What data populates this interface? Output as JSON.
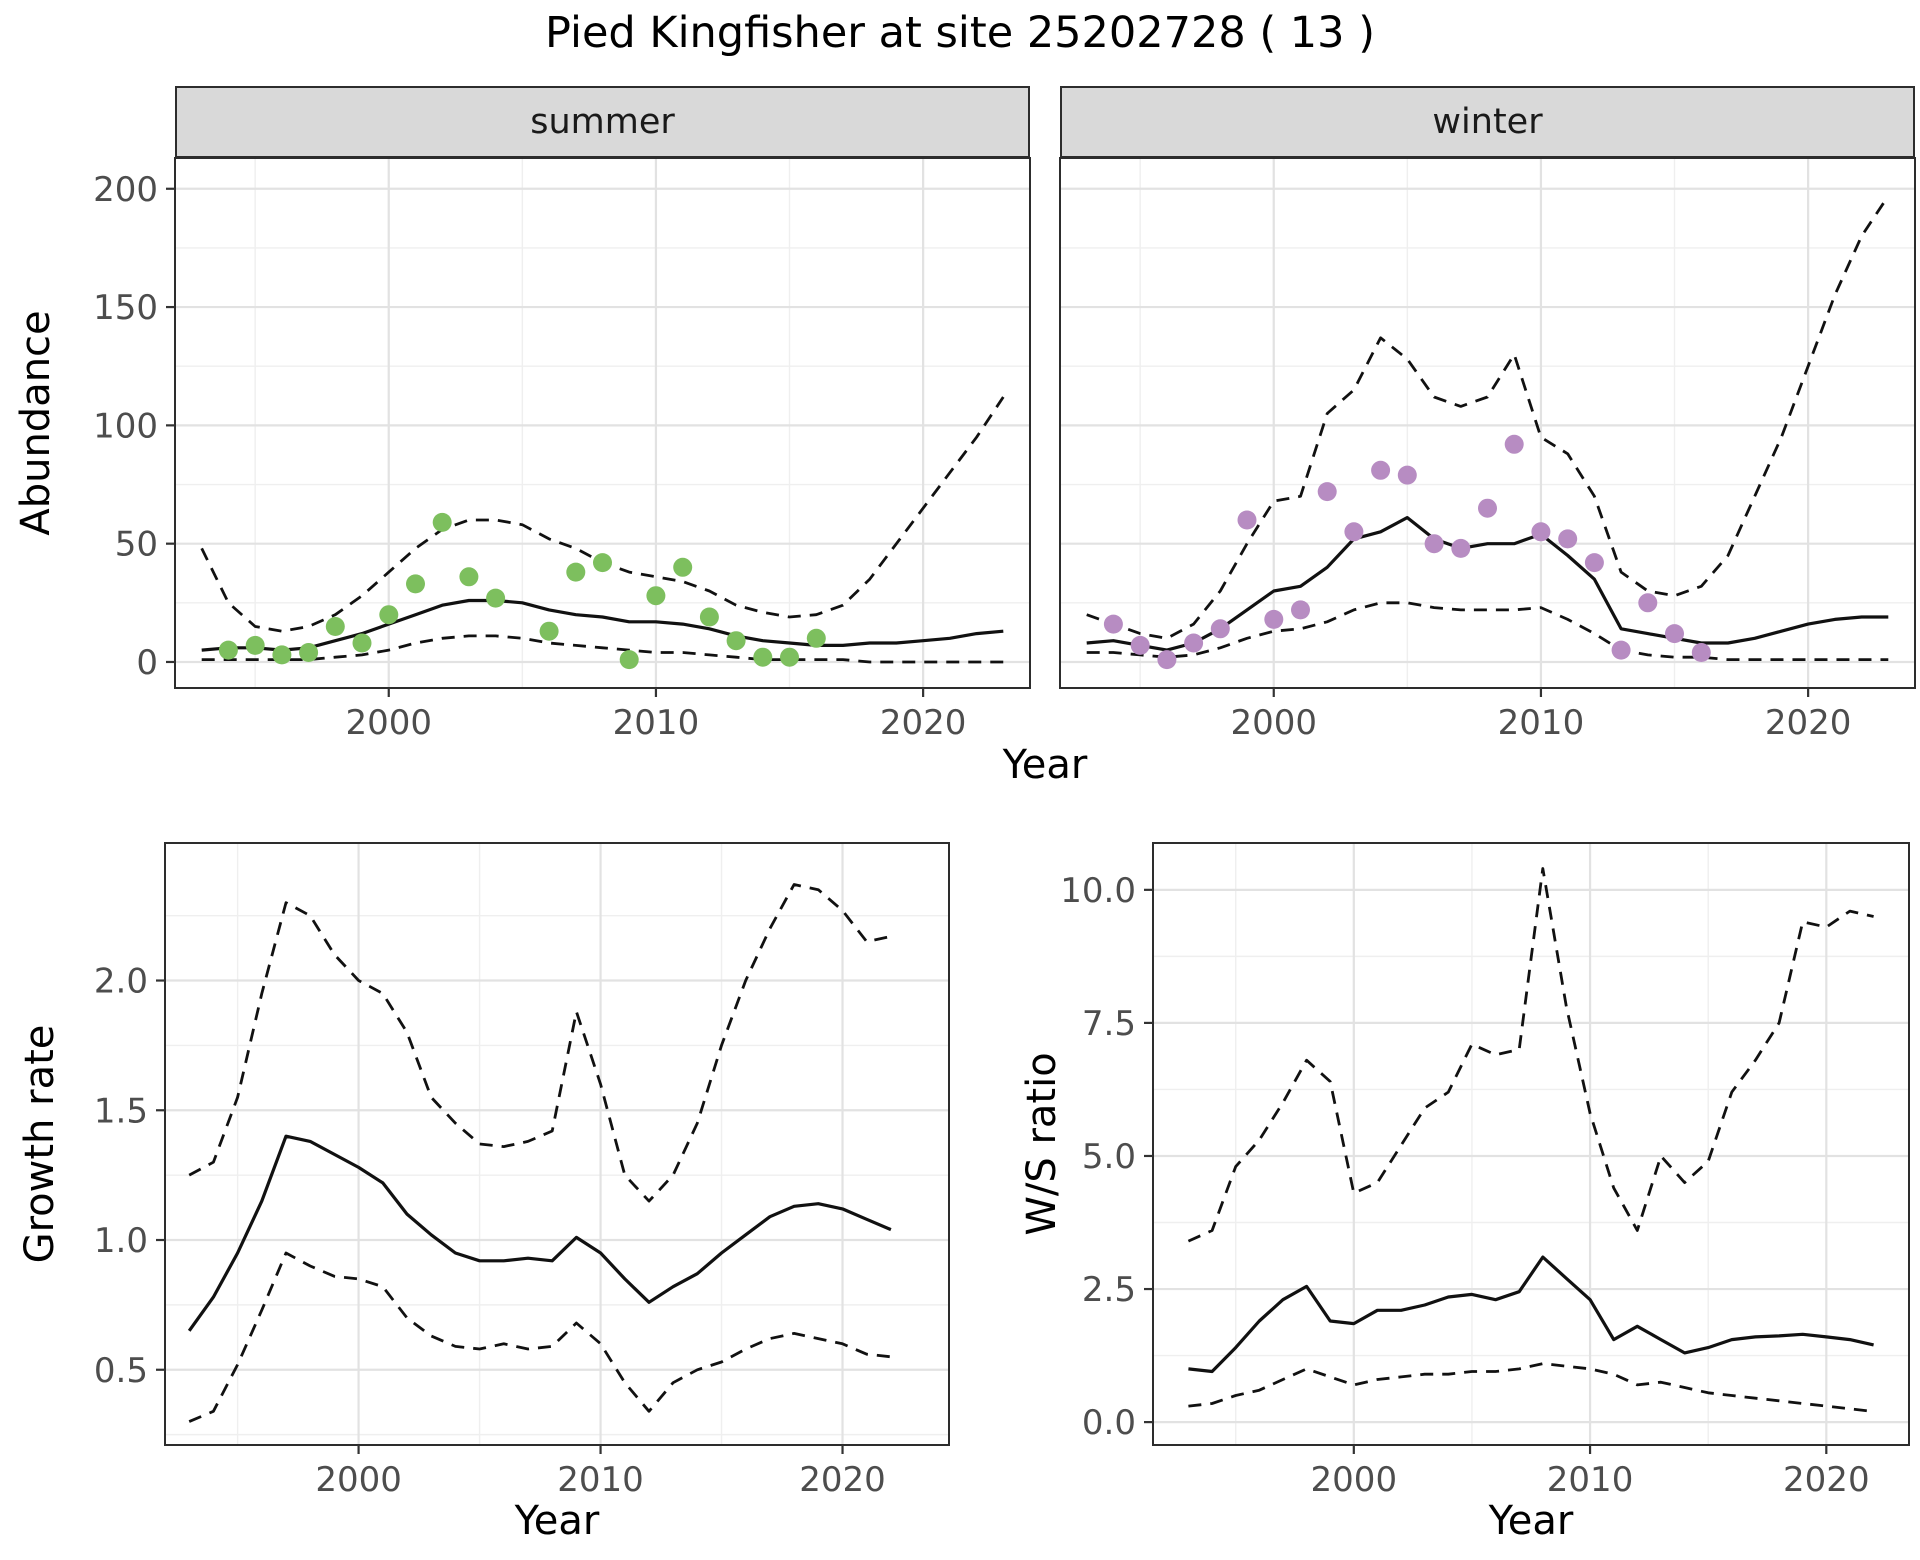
{
  "title": "Pied Kingfisher at site 25202728 ( 13 )",
  "axes": {
    "abundance": "Abundance",
    "year": "Year",
    "growth": "Growth rate",
    "ws": "W/S ratio"
  },
  "colors": {
    "summer_points": "#7dbf5e",
    "winter_points": "#b78cc2",
    "line": "#111111",
    "strip_bg": "#d9d9d9"
  },
  "chart_data": [
    {
      "type": "line+scatter",
      "facet": "summer",
      "xlabel": "Year",
      "ylabel": "Abundance",
      "xlim": [
        1992,
        2024
      ],
      "ylim": [
        -11,
        213
      ],
      "xticks": [
        2000,
        2010,
        2020
      ],
      "xtick_labels": [
        "2000",
        "2010",
        "2020"
      ],
      "yticks": [
        0,
        50,
        100,
        150,
        200
      ],
      "ytick_labels": [
        "0",
        "50",
        "100",
        "150",
        "200"
      ],
      "years": [
        1993,
        1994,
        1995,
        1996,
        1997,
        1998,
        1999,
        2000,
        2001,
        2002,
        2003,
        2004,
        2005,
        2006,
        2007,
        2008,
        2009,
        2010,
        2011,
        2012,
        2013,
        2014,
        2015,
        2016,
        2017,
        2018,
        2019,
        2020,
        2021,
        2022,
        2023
      ],
      "points": {
        "color": "#7dbf5e",
        "x": [
          1994,
          1995,
          1996,
          1997,
          1998,
          1999,
          2000,
          2001,
          2002,
          2003,
          2004,
          2006,
          2007,
          2008,
          2009,
          2010,
          2011,
          2012,
          2013,
          2014,
          2015,
          2016
        ],
        "y": [
          5,
          7,
          3,
          4,
          15,
          8,
          20,
          33,
          59,
          36,
          27,
          13,
          38,
          42,
          1,
          28,
          40,
          19,
          9,
          2,
          2,
          10
        ]
      },
      "series": [
        {
          "name": "model-fit",
          "style": "solid",
          "y": [
            5,
            6,
            6,
            5,
            6,
            9,
            12,
            16,
            20,
            24,
            26,
            26,
            25,
            22,
            20,
            19,
            17,
            17,
            16,
            14,
            11,
            9,
            8,
            7,
            7,
            8,
            8,
            9,
            10,
            12,
            13
          ]
        },
        {
          "name": "upper-ci",
          "style": "dashed",
          "y": [
            48,
            25,
            15,
            13,
            15,
            20,
            28,
            38,
            48,
            56,
            60,
            60,
            58,
            52,
            48,
            42,
            38,
            36,
            34,
            30,
            24,
            21,
            19,
            20,
            24,
            35,
            50,
            65,
            80,
            95,
            112
          ]
        },
        {
          "name": "lower-ci",
          "style": "dashed",
          "y": [
            1,
            1,
            1,
            1,
            1,
            2,
            3,
            5,
            8,
            10,
            11,
            11,
            10,
            8,
            7,
            6,
            5,
            4,
            4,
            3,
            2,
            1,
            1,
            1,
            1,
            0,
            0,
            0,
            0,
            0,
            0
          ]
        }
      ]
    },
    {
      "type": "line+scatter",
      "facet": "winter",
      "xlabel": "Year",
      "ylabel": "Abundance",
      "xlim": [
        1992,
        2024
      ],
      "ylim": [
        -11,
        213
      ],
      "xticks": [
        2000,
        2010,
        2020
      ],
      "xtick_labels": [
        "2000",
        "2010",
        "2020"
      ],
      "yticks": [
        0,
        50,
        100,
        150,
        200
      ],
      "ytick_labels": [
        "0",
        "50",
        "100",
        "150",
        "200"
      ],
      "years": [
        1993,
        1994,
        1995,
        1996,
        1997,
        1998,
        1999,
        2000,
        2001,
        2002,
        2003,
        2004,
        2005,
        2006,
        2007,
        2008,
        2009,
        2010,
        2011,
        2012,
        2013,
        2014,
        2015,
        2016,
        2017,
        2018,
        2019,
        2020,
        2021,
        2022,
        2023
      ],
      "points": {
        "color": "#b78cc2",
        "x": [
          1994,
          1995,
          1996,
          1997,
          1998,
          1999,
          2000,
          2001,
          2002,
          2003,
          2004,
          2005,
          2006,
          2007,
          2008,
          2009,
          2010,
          2011,
          2012,
          2013,
          2014,
          2015,
          2016
        ],
        "y": [
          16,
          7,
          1,
          8,
          14,
          60,
          18,
          22,
          72,
          55,
          81,
          79,
          50,
          48,
          65,
          92,
          55,
          52,
          42,
          5,
          25,
          12,
          4
        ]
      },
      "series": [
        {
          "name": "model-fit",
          "style": "solid",
          "y": [
            8,
            9,
            7,
            5,
            8,
            14,
            22,
            30,
            32,
            40,
            52,
            55,
            61,
            52,
            48,
            50,
            50,
            54,
            45,
            35,
            14,
            12,
            10,
            8,
            8,
            10,
            13,
            16,
            18,
            19,
            19
          ]
        },
        {
          "name": "upper-ci",
          "style": "dashed",
          "y": [
            20,
            16,
            12,
            10,
            16,
            30,
            50,
            68,
            70,
            105,
            115,
            137,
            128,
            112,
            108,
            112,
            130,
            95,
            88,
            70,
            38,
            30,
            28,
            32,
            45,
            70,
            95,
            125,
            155,
            180,
            197
          ]
        },
        {
          "name": "lower-ci",
          "style": "dashed",
          "y": [
            4,
            4,
            3,
            2,
            3,
            6,
            10,
            13,
            14,
            17,
            22,
            25,
            25,
            23,
            22,
            22,
            22,
            23,
            18,
            12,
            5,
            3,
            2,
            2,
            1,
            1,
            1,
            1,
            1,
            1,
            1
          ]
        }
      ]
    },
    {
      "type": "line",
      "facet": "",
      "xlabel": "Year",
      "ylabel": "Growth rate",
      "xlim": [
        1992,
        2024.4
      ],
      "ylim": [
        0.21,
        2.53
      ],
      "xticks": [
        2000,
        2010,
        2020
      ],
      "xtick_labels": [
        "2000",
        "2010",
        "2020"
      ],
      "yticks": [
        0.5,
        1.0,
        1.5,
        2.0
      ],
      "ytick_labels": [
        "0.5",
        "1.0",
        "1.5",
        "2.0"
      ],
      "years": [
        1993,
        1994,
        1995,
        1996,
        1997,
        1998,
        1999,
        2000,
        2001,
        2002,
        2003,
        2004,
        2005,
        2006,
        2007,
        2008,
        2009,
        2010,
        2011,
        2012,
        2013,
        2014,
        2015,
        2016,
        2017,
        2018,
        2019,
        2020,
        2021,
        2022
      ],
      "series": [
        {
          "name": "model-fit",
          "style": "solid",
          "y": [
            0.65,
            0.78,
            0.95,
            1.15,
            1.4,
            1.38,
            1.33,
            1.28,
            1.22,
            1.1,
            1.02,
            0.95,
            0.92,
            0.92,
            0.93,
            0.92,
            1.01,
            0.95,
            0.85,
            0.76,
            0.82,
            0.87,
            0.95,
            1.02,
            1.09,
            1.13,
            1.14,
            1.12,
            1.08,
            1.04
          ]
        },
        {
          "name": "upper-ci",
          "style": "dashed",
          "y": [
            1.25,
            1.3,
            1.55,
            1.95,
            2.3,
            2.25,
            2.1,
            2.0,
            1.95,
            1.8,
            1.55,
            1.45,
            1.37,
            1.36,
            1.38,
            1.42,
            1.88,
            1.6,
            1.25,
            1.15,
            1.25,
            1.45,
            1.75,
            2.0,
            2.2,
            2.37,
            2.35,
            2.27,
            2.15,
            2.17
          ]
        },
        {
          "name": "lower-ci",
          "style": "dashed",
          "y": [
            0.3,
            0.34,
            0.52,
            0.73,
            0.95,
            0.9,
            0.86,
            0.85,
            0.82,
            0.7,
            0.63,
            0.59,
            0.58,
            0.6,
            0.58,
            0.59,
            0.68,
            0.6,
            0.45,
            0.34,
            0.45,
            0.5,
            0.53,
            0.58,
            0.62,
            0.64,
            0.62,
            0.6,
            0.56,
            0.55
          ]
        }
      ]
    },
    {
      "type": "line",
      "facet": "",
      "xlabel": "Year",
      "ylabel": "W/S ratio",
      "xlim": [
        1991.5,
        2023.5
      ],
      "ylim": [
        -0.43,
        10.88
      ],
      "xticks": [
        2000,
        2010,
        2020
      ],
      "xtick_labels": [
        "2000",
        "2010",
        "2020"
      ],
      "yticks": [
        0.0,
        2.5,
        5.0,
        7.5,
        10.0
      ],
      "ytick_labels": [
        "0.0",
        "2.5",
        "5.0",
        "7.5",
        "10.0"
      ],
      "years": [
        1993,
        1994,
        1995,
        1996,
        1997,
        1998,
        1999,
        2000,
        2001,
        2002,
        2003,
        2004,
        2005,
        2006,
        2007,
        2008,
        2009,
        2010,
        2011,
        2012,
        2013,
        2014,
        2015,
        2016,
        2017,
        2018,
        2019,
        2020,
        2021,
        2022
      ],
      "series": [
        {
          "name": "model-fit",
          "style": "solid",
          "y": [
            1.0,
            0.95,
            1.4,
            1.9,
            2.3,
            2.55,
            1.9,
            1.85,
            2.1,
            2.1,
            2.2,
            2.35,
            2.4,
            2.3,
            2.45,
            3.1,
            2.7,
            2.3,
            1.55,
            1.8,
            1.55,
            1.3,
            1.4,
            1.55,
            1.6,
            1.62,
            1.65,
            1.6,
            1.55,
            1.45
          ]
        },
        {
          "name": "upper-ci",
          "style": "dashed",
          "y": [
            3.4,
            3.6,
            4.8,
            5.3,
            6.0,
            6.8,
            6.4,
            4.3,
            4.5,
            5.2,
            5.9,
            6.2,
            7.1,
            6.9,
            7.0,
            10.4,
            7.8,
            5.8,
            4.4,
            3.6,
            5.0,
            4.5,
            4.9,
            6.2,
            6.8,
            7.5,
            9.4,
            9.3,
            9.6,
            9.5
          ]
        },
        {
          "name": "lower-ci",
          "style": "dashed",
          "y": [
            0.3,
            0.35,
            0.5,
            0.6,
            0.8,
            1.0,
            0.85,
            0.7,
            0.8,
            0.85,
            0.9,
            0.9,
            0.95,
            0.95,
            1.0,
            1.1,
            1.05,
            1.0,
            0.9,
            0.7,
            0.75,
            0.65,
            0.55,
            0.5,
            0.45,
            0.4,
            0.35,
            0.3,
            0.25,
            0.2
          ]
        }
      ]
    }
  ]
}
